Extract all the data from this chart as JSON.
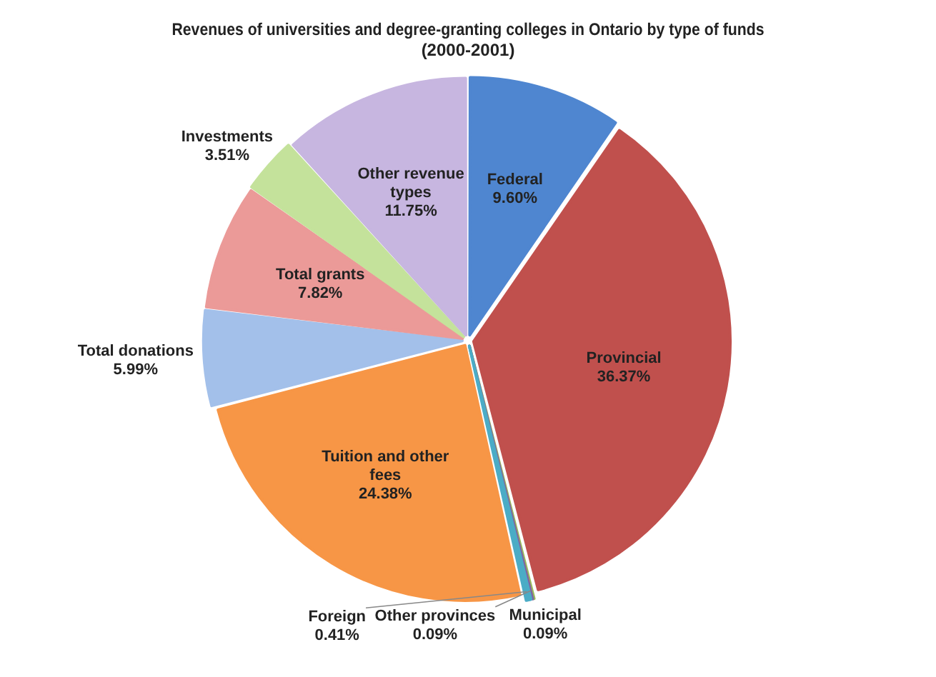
{
  "chart_data": {
    "type": "pie",
    "title": "Revenues of universities and degree-granting colleges in Ontario by type of funds",
    "subtitle": "(2000-2001)",
    "categories": [
      "Federal",
      "Provincial",
      "Municipal",
      "Other provinces",
      "Foreign",
      "Tuition and other fees",
      "Total donations",
      "Total grants",
      "Investments",
      "Other revenue types"
    ],
    "values": [
      9.6,
      36.37,
      0.09,
      0.09,
      0.41,
      24.38,
      5.99,
      7.82,
      3.51,
      11.75
    ],
    "value_labels": [
      "9.60%",
      "36.37%",
      "0.09%",
      "0.09%",
      "0.41%",
      "24.38%",
      "5.99%",
      "7.82%",
      "3.51%",
      "11.75%"
    ],
    "colors": [
      "#4f86d0",
      "#c0504d",
      "#9bbb59",
      "#8064a2",
      "#4bacc6",
      "#f79646",
      "#a3c0ea",
      "#eb9a98",
      "#c4e29b",
      "#c7b6e0"
    ],
    "legend": false
  }
}
